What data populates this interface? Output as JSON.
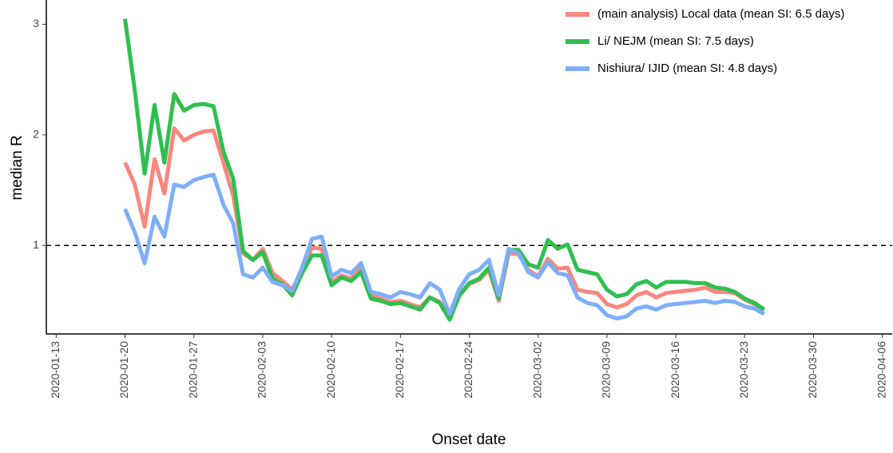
{
  "chart_data": {
    "type": "line",
    "x_label": "Onset date",
    "y_label": "median R",
    "x": [
      "2020-01-20",
      "2020-01-21",
      "2020-01-22",
      "2020-01-23",
      "2020-01-24",
      "2020-01-25",
      "2020-01-26",
      "2020-01-27",
      "2020-01-28",
      "2020-01-29",
      "2020-01-30",
      "2020-01-31",
      "2020-02-01",
      "2020-02-02",
      "2020-02-03",
      "2020-02-04",
      "2020-02-05",
      "2020-02-06",
      "2020-02-07",
      "2020-02-08",
      "2020-02-09",
      "2020-02-10",
      "2020-02-11",
      "2020-02-12",
      "2020-02-13",
      "2020-02-14",
      "2020-02-15",
      "2020-02-16",
      "2020-02-17",
      "2020-02-18",
      "2020-02-19",
      "2020-02-20",
      "2020-02-21",
      "2020-02-22",
      "2020-02-23",
      "2020-02-24",
      "2020-02-25",
      "2020-02-26",
      "2020-02-27",
      "2020-02-28",
      "2020-02-29",
      "2020-03-01",
      "2020-03-02",
      "2020-03-03",
      "2020-03-04",
      "2020-03-05",
      "2020-03-06",
      "2020-03-07",
      "2020-03-08",
      "2020-03-09",
      "2020-03-10",
      "2020-03-11",
      "2020-03-12",
      "2020-03-13",
      "2020-03-14",
      "2020-03-15",
      "2020-03-16",
      "2020-03-17",
      "2020-03-18",
      "2020-03-19",
      "2020-03-20",
      "2020-03-21",
      "2020-03-22",
      "2020-03-23",
      "2020-03-24",
      "2020-03-25"
    ],
    "series": [
      {
        "name": "(main analysis) Local data (mean SI: 6.5 days)",
        "color": "#f8877f",
        "values": [
          1.75,
          1.55,
          1.17,
          1.78,
          1.47,
          2.06,
          1.95,
          2.0,
          2.03,
          2.04,
          1.75,
          1.45,
          0.93,
          0.87,
          0.97,
          0.75,
          0.68,
          0.6,
          0.78,
          0.98,
          0.97,
          0.67,
          0.73,
          0.7,
          0.8,
          0.55,
          0.52,
          0.49,
          0.5,
          0.47,
          0.44,
          0.53,
          0.49,
          0.34,
          0.55,
          0.65,
          0.69,
          0.78,
          0.5,
          0.93,
          0.92,
          0.78,
          0.72,
          0.88,
          0.79,
          0.8,
          0.6,
          0.58,
          0.57,
          0.47,
          0.44,
          0.47,
          0.55,
          0.58,
          0.53,
          0.57,
          0.58,
          0.59,
          0.6,
          0.62,
          0.58,
          0.58,
          0.57,
          0.51,
          0.47,
          0.42
        ]
      },
      {
        "name": "Li/ NEJM (mean SI: 7.5 days)",
        "color": "#2fbf4f",
        "values": [
          3.05,
          2.4,
          1.65,
          2.27,
          1.75,
          2.37,
          2.22,
          2.27,
          2.28,
          2.26,
          1.85,
          1.6,
          0.95,
          0.87,
          0.94,
          0.7,
          0.65,
          0.55,
          0.75,
          0.91,
          0.91,
          0.64,
          0.71,
          0.68,
          0.76,
          0.52,
          0.5,
          0.47,
          0.48,
          0.45,
          0.42,
          0.53,
          0.48,
          0.33,
          0.55,
          0.66,
          0.7,
          0.8,
          0.52,
          0.96,
          0.96,
          0.83,
          0.8,
          1.05,
          0.97,
          1.01,
          0.78,
          0.76,
          0.74,
          0.6,
          0.54,
          0.56,
          0.65,
          0.68,
          0.62,
          0.67,
          0.67,
          0.67,
          0.66,
          0.66,
          0.62,
          0.61,
          0.58,
          0.52,
          0.48,
          0.42
        ]
      },
      {
        "name": "Nishiura/ IJID (mean SI: 4.8 days)",
        "color": "#7eaef7",
        "values": [
          1.33,
          1.12,
          0.84,
          1.26,
          1.08,
          1.55,
          1.53,
          1.59,
          1.62,
          1.64,
          1.37,
          1.2,
          0.74,
          0.71,
          0.8,
          0.67,
          0.64,
          0.59,
          0.8,
          1.06,
          1.08,
          0.72,
          0.78,
          0.75,
          0.84,
          0.58,
          0.56,
          0.53,
          0.58,
          0.56,
          0.53,
          0.66,
          0.6,
          0.38,
          0.61,
          0.74,
          0.78,
          0.87,
          0.55,
          0.97,
          0.93,
          0.76,
          0.71,
          0.85,
          0.75,
          0.73,
          0.53,
          0.48,
          0.46,
          0.37,
          0.34,
          0.36,
          0.43,
          0.45,
          0.42,
          0.46,
          0.47,
          0.48,
          0.49,
          0.5,
          0.48,
          0.5,
          0.49,
          0.45,
          0.43,
          0.38
        ]
      }
    ],
    "xlim": [
      "2020-01-12",
      "2020-04-07"
    ],
    "xticks": [
      "2020-01-13",
      "2020-01-20",
      "2020-01-27",
      "2020-02-03",
      "2020-02-10",
      "2020-02-17",
      "2020-02-24",
      "2020-03-02",
      "2020-03-09",
      "2020-03-16",
      "2020-03-23",
      "2020-03-30",
      "2020-04-06"
    ],
    "ylim": [
      0.2,
      3.22
    ],
    "yticks": [
      1,
      2,
      3
    ],
    "hline": 1,
    "grid": false,
    "legend": "top-right"
  }
}
